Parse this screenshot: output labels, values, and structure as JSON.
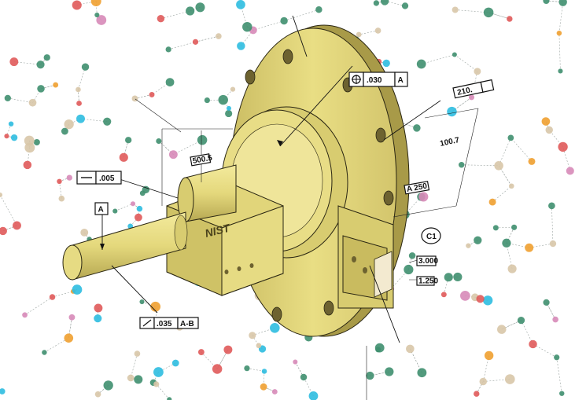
{
  "drawing": {
    "logo_text": "NIST",
    "colors": {
      "part": "#e9de84",
      "part_dark": "#b9ab52",
      "part_shadow": "#9e9042",
      "node_green": "#3f8f6f",
      "node_tan": "#d8c7a8",
      "node_cyan": "#2ebde0",
      "node_red": "#e05a5a",
      "node_orange": "#f0a030",
      "node_pink": "#d78ab8"
    }
  },
  "callouts": {
    "flatness": ".005",
    "datum_a": "A",
    "profile_tol": ".035",
    "profile_ref": "A-B",
    "position_tol": ".030",
    "position_ref": "A",
    "bolt_circle": "210.",
    "basic_dim": "100.7",
    "datum_c": "C1",
    "dim_1": "3.000",
    "dim_2": "1.250",
    "small_box_1": "500.5",
    "small_box_2": "A 250"
  }
}
